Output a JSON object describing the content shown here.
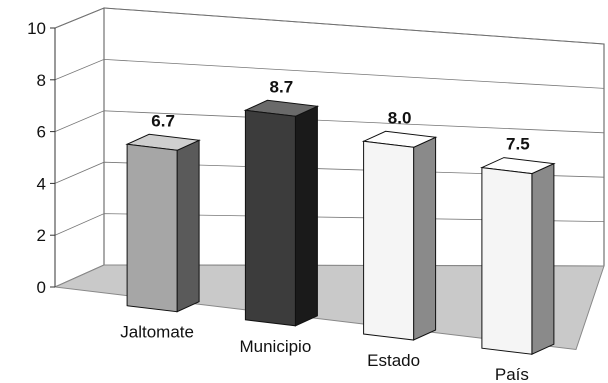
{
  "chart_data": {
    "type": "bar",
    "categories": [
      "Jaltomate",
      "Municipio",
      "Estado",
      "País"
    ],
    "values": [
      6.7,
      8.7,
      8.0,
      7.5
    ],
    "value_labels": [
      "6.7",
      "8.7",
      "8.0",
      "7.5"
    ],
    "ylim": [
      0,
      10
    ],
    "yticks": [
      "0",
      "2",
      "4",
      "6",
      "8",
      "10"
    ],
    "grid": true,
    "legend": "none",
    "bar_colors": [
      "#a6a6a6",
      "#3c3c3c",
      "#f5f5f5",
      "#f5f5f5"
    ],
    "side_colors": [
      "#5a5a5a",
      "#1a1a1a",
      "#8a8a8a",
      "#8a8a8a"
    ],
    "top_colors": [
      "#cfcfcf",
      "#6a6a6a",
      "#ffffff",
      "#ffffff"
    ],
    "floor_color": "#c9c9c9"
  }
}
